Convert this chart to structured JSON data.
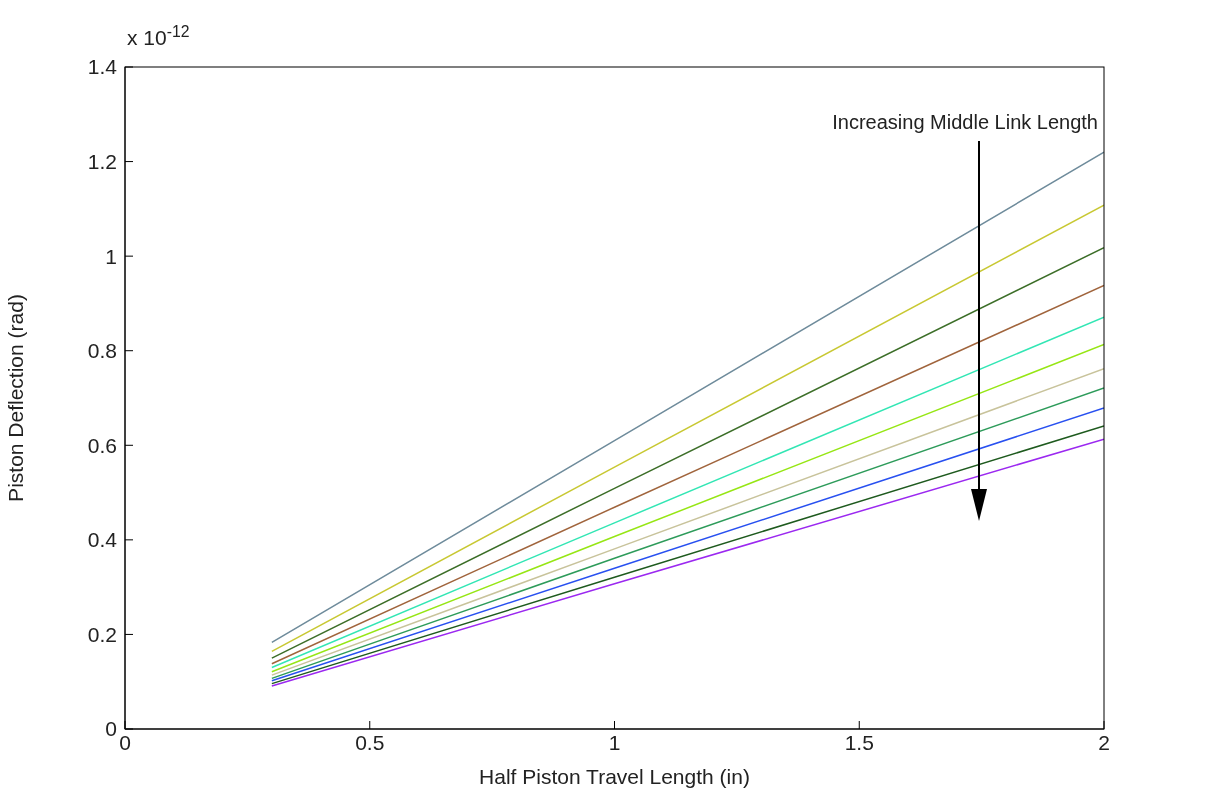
{
  "chart_data": {
    "type": "line",
    "xlabel": "Half Piston Travel Length (in)",
    "ylabel": "Piston Deflection (rad)",
    "x": [
      0.3,
      1,
      2
    ],
    "series": [
      {
        "color": "#6e8b9b",
        "values": [
          0.183,
          0.61,
          1.22
        ]
      },
      {
        "color": "#c8c832",
        "values": [
          0.164,
          0.554,
          1.108
        ]
      },
      {
        "color": "#3c6e28",
        "values": [
          0.15,
          0.509,
          1.018
        ]
      },
      {
        "color": "#a0643c",
        "values": [
          0.138,
          0.469,
          0.938
        ]
      },
      {
        "color": "#32e6b4",
        "values": [
          0.13,
          0.436,
          0.871
        ]
      },
      {
        "color": "#96e614",
        "values": [
          0.121,
          0.407,
          0.813
        ]
      },
      {
        "color": "#c8c39b",
        "values": [
          0.114,
          0.381,
          0.762
        ]
      },
      {
        "color": "#2d9b5a",
        "values": [
          0.107,
          0.361,
          0.721
        ]
      },
      {
        "color": "#2850f0",
        "values": [
          0.102,
          0.34,
          0.679
        ]
      },
      {
        "color": "#1e5a1e",
        "values": [
          0.096,
          0.321,
          0.641
        ]
      },
      {
        "color": "#9b28f0",
        "values": [
          0.091,
          0.307,
          0.613
        ]
      }
    ],
    "xlim": [
      0,
      2
    ],
    "xticks": [
      0,
      0.5,
      1,
      1.5,
      2
    ],
    "ylim": [
      0,
      1.4
    ],
    "yticks": [
      0,
      0.2,
      0.4,
      0.6,
      0.8,
      1,
      1.2,
      1.4
    ],
    "annotations": [
      "x 10$^{-12}$",
      "Increasing Middle Link Length"
    ],
    "grid": false,
    "legend": false,
    "marker": "none",
    "line_style": "solid"
  }
}
